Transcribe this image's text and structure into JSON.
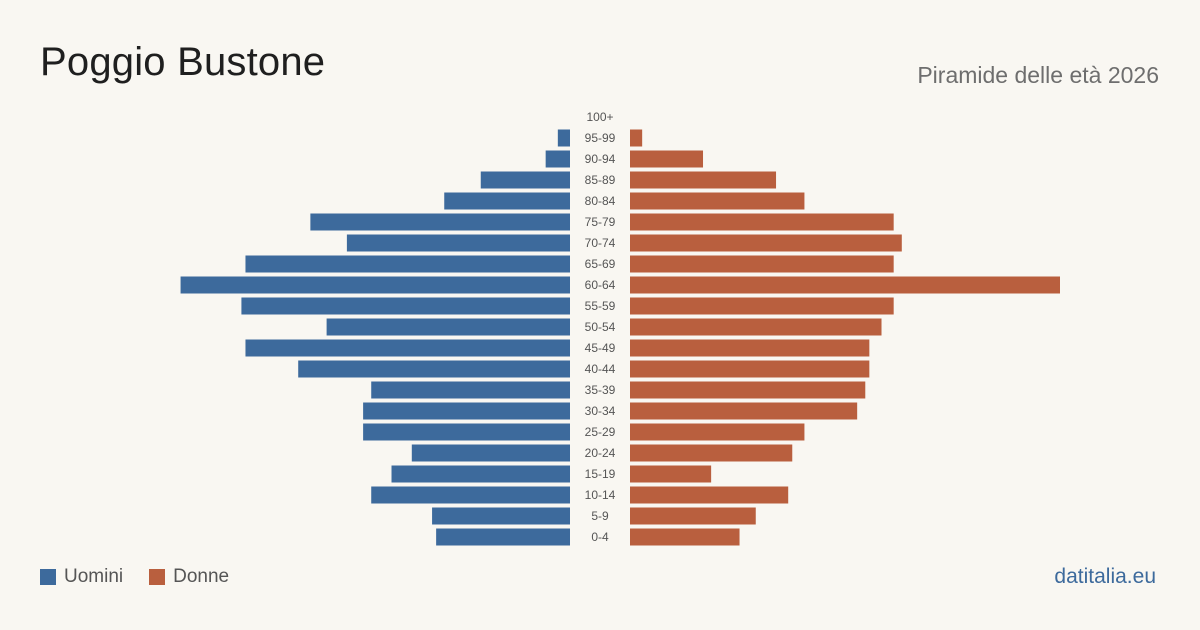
{
  "header": {
    "title": "Poggio Bustone",
    "subtitle": "Piramide delle età 2026"
  },
  "legend": {
    "men_label": "Uomini",
    "women_label": "Donne"
  },
  "source": "datitalia.eu",
  "colors": {
    "men": "#3d6a9c",
    "women": "#b95f3e",
    "background": "#f9f7f2"
  },
  "chart_data": {
    "type": "bar",
    "orientation": "horizontal-pyramid",
    "categories": [
      "100+",
      "95-99",
      "90-94",
      "85-89",
      "80-84",
      "75-79",
      "70-74",
      "65-69",
      "60-64",
      "55-59",
      "50-54",
      "45-49",
      "40-44",
      "35-39",
      "30-34",
      "25-29",
      "20-24",
      "15-19",
      "10-14",
      "5-9",
      "0-4"
    ],
    "series": [
      {
        "name": "Uomini",
        "values": [
          0,
          3,
          6,
          22,
          31,
          64,
          55,
          80,
          96,
          81,
          60,
          80,
          67,
          49,
          51,
          51,
          39,
          44,
          49,
          34,
          33
        ]
      },
      {
        "name": "Donne",
        "values": [
          0,
          3,
          18,
          36,
          43,
          65,
          67,
          65,
          106,
          65,
          62,
          59,
          59,
          58,
          56,
          43,
          40,
          20,
          39,
          31,
          27
        ]
      }
    ]
  }
}
